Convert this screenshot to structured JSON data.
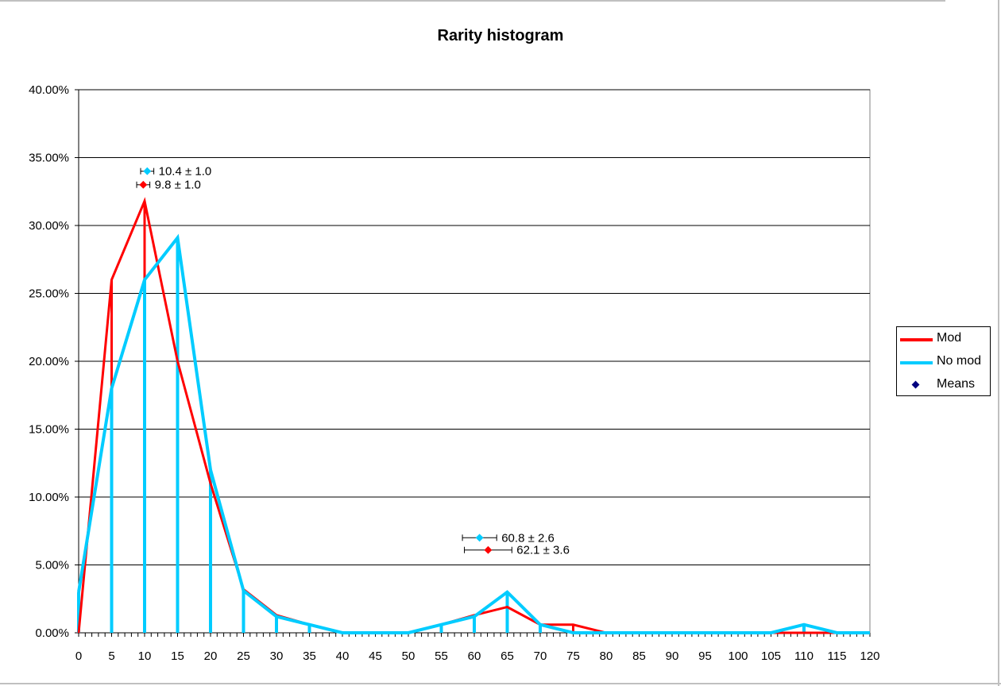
{
  "chart_data": {
    "type": "line",
    "title": "Rarity histogram",
    "xlabel": "",
    "ylabel": "",
    "xlim": [
      0,
      120
    ],
    "ylim": [
      0,
      0.4
    ],
    "grid": true,
    "legend_position": "right",
    "x": [
      0,
      5,
      10,
      15,
      20,
      25,
      30,
      35,
      40,
      45,
      50,
      55,
      60,
      65,
      70,
      75,
      80,
      85,
      90,
      95,
      100,
      105,
      110,
      115,
      120
    ],
    "x_ticks": [
      "0",
      "5",
      "10",
      "15",
      "20",
      "25",
      "30",
      "35",
      "40",
      "45",
      "50",
      "55",
      "60",
      "65",
      "70",
      "75",
      "80",
      "85",
      "90",
      "95",
      "100",
      "105",
      "110",
      "115",
      "120"
    ],
    "y_ticks": [
      "0.00%",
      "5.00%",
      "10.00%",
      "15.00%",
      "20.00%",
      "25.00%",
      "30.00%",
      "35.00%",
      "40.00%"
    ],
    "series": [
      {
        "name": "Mod",
        "color": "#ff0000",
        "values": [
          0.0,
          0.26,
          0.318,
          0.2,
          0.11,
          0.032,
          0.013,
          0.006,
          0.0,
          0.0,
          0.0,
          0.006,
          0.013,
          0.019,
          0.006,
          0.006,
          0.0,
          0.0,
          0.0,
          0.0,
          0.0,
          0.0,
          0.0,
          0.0,
          0.0
        ]
      },
      {
        "name": "No mod",
        "color": "#00ccff",
        "values": [
          0.03,
          0.18,
          0.26,
          0.291,
          0.12,
          0.031,
          0.012,
          0.006,
          0.0,
          0.0,
          0.0,
          0.006,
          0.012,
          0.03,
          0.006,
          0.0,
          0.0,
          0.0,
          0.0,
          0.0,
          0.0,
          0.0,
          0.006,
          0.0,
          0.0
        ]
      }
    ],
    "means": {
      "name": "Means",
      "color": "#000080",
      "points": [
        {
          "series": "No mod",
          "x": 10.4,
          "err": 1.0,
          "y": 0.34,
          "label": "10.4 ± 1.0",
          "color": "#00ccff"
        },
        {
          "series": "Mod",
          "x": 9.8,
          "err": 1.0,
          "y": 0.33,
          "label": "9.8 ± 1.0",
          "color": "#ff0000"
        },
        {
          "series": "No mod",
          "x": 60.8,
          "err": 2.6,
          "y": 0.07,
          "label": "60.8 ± 2.6",
          "color": "#00ccff"
        },
        {
          "series": "Mod",
          "x": 62.1,
          "err": 3.6,
          "y": 0.061,
          "label": "62.1 ± 3.6",
          "color": "#ff0000"
        }
      ]
    }
  }
}
